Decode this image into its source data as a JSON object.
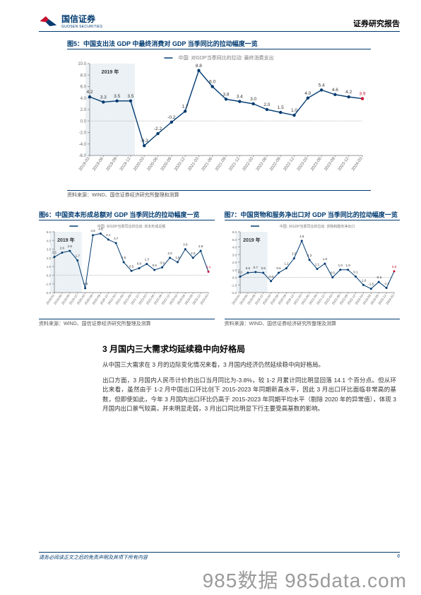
{
  "header": {
    "logo_cn": "国信证券",
    "logo_en": "GUOSEN SECURITIES",
    "report_type": "证券研究报告"
  },
  "chart5": {
    "title": "图5：中国支出法 GDP 中最终消费对 GDP 当季同比的拉动幅度一览",
    "subtitle": "中国: 对GDP当季同比的拉动: 最终消费支出",
    "shade_label": "2019 年",
    "x_labels": [
      "2019-03",
      "2019-06",
      "2019-09",
      "2019-12",
      "2020-03",
      "2020-06",
      "2020-09",
      "2020-12",
      "2021-03",
      "2021-06",
      "2021-09",
      "2021-12",
      "2022-03",
      "2022-06",
      "2022-09",
      "2022-12",
      "2023-03",
      "2023-06",
      "2023-09",
      "2023-12",
      "2024-03"
    ],
    "values": [
      4.2,
      3.3,
      3.5,
      3.5,
      -4.3,
      -2.2,
      -0.2,
      1.7,
      8.8,
      6.0,
      3.8,
      3.4,
      3.0,
      2.0,
      1.5,
      1.0,
      4.0,
      5.4,
      4.6,
      4.2,
      3.9
    ],
    "ylim": [
      -6,
      10
    ],
    "ytick_step": 2,
    "line_color": "#003a70",
    "marker_color": "#003a70",
    "last_marker_color": "#c8102e",
    "background_color": "#ffffff",
    "axis_color": "#999999",
    "label_fontsize": 6,
    "title_fontsize": 9,
    "subtitle_fontsize": 7,
    "footer": "资料来源：WIND、国信证券经济研究所整理和测算"
  },
  "chart6": {
    "title": "图6：中国资本形成总额对 GDP 当季同比的拉动幅度一览",
    "subtitle": "中国: 对GDP当季同比的拉动: 资本形成总额",
    "shade_label": "2019 年",
    "x_labels": [
      "2019-03",
      "2019-06",
      "2019-09",
      "2019-12",
      "2020-03",
      "2020-06",
      "2020-09",
      "2020-12",
      "2021-03",
      "2021-06",
      "2021-09",
      "2021-12",
      "2022-03",
      "2022-06",
      "2022-09",
      "2022-12",
      "2023-03",
      "2023-06",
      "2023-09",
      "2023-12",
      "2024-03"
    ],
    "values": [
      2.1,
      2.6,
      2.8,
      1.7,
      -1.5,
      4.6,
      4.8,
      4.1,
      3.7,
      1.5,
      0.5,
      0.8,
      1.3,
      0.6,
      0.9,
      2.0,
      1.5,
      3.0,
      2.0,
      2.8,
      0.4
    ],
    "ylim": [
      -2,
      5
    ],
    "ytick_step": 1,
    "line_color": "#003a70",
    "last_marker_color": "#c8102e",
    "footer": "资料来源：WIND、国信证券经济研究所整理及测算"
  },
  "chart7": {
    "title": "图7：中国货物和服务净出口对 GDP 当季同比的拉动幅度一览",
    "subtitle": "中国: 对GDP当季同比的拉动: 货物和服务净出口",
    "shade_label": "2019 年",
    "x_labels": [
      "2019-03",
      "2019-06",
      "2019-09",
      "2019-12",
      "2020-03",
      "2020-06",
      "2020-09",
      "2020-12",
      "2021-03",
      "2021-06",
      "2021-09",
      "2021-12",
      "2022-03",
      "2022-06",
      "2022-09",
      "2022-12",
      "2023-03",
      "2023-06",
      "2023-09",
      "2023-12",
      "2024-03"
    ],
    "values": [
      0.1,
      0.6,
      0.7,
      0.6,
      -0.5,
      0.6,
      1.2,
      2.5,
      4.8,
      2.3,
      1.1,
      1.8,
      0.0,
      1.0,
      1.0,
      0.1,
      -1.0,
      -1.5,
      -0.6,
      -1.4,
      0.8
    ],
    "ylim": [
      -2,
      6
    ],
    "ytick_step": 1,
    "line_color": "#003a70",
    "last_marker_color": "#c8102e",
    "footer": "资料来源：WIND、国信证券经济研究所整理及测算"
  },
  "section": {
    "title": "3 月国内三大需求均延续稳中向好格局",
    "para1": "从中国三大需求在 3 月的边际变化情况来看，3 月国内经济仍然延续稳中向好格局。",
    "para2": "出口方面，3 月国内人民币计价的出口当月同比为-3.8%，较 1-2 月累计同比明显回落 14.1 个百分点。但从环比来看，虽然由于 1-2 月中国出口环比创下 2015-2023 年同期新高水平，因此 3 月出口环比面临非常高的基数，但即使如此，今年 3 月国内出口环比仍高于 2015-2023 年同期平均水平（剔除 2020 年的异常值），体现 3 月国内出口景气较高，并未明显走弱，3 月出口同比明显下行主要受高基数的影响。"
  },
  "footer": {
    "disclaimer": "请务必阅读正文之后的免责声明及其项下所有内容",
    "page_no": "6"
  },
  "watermark": "985数据  985data.com"
}
